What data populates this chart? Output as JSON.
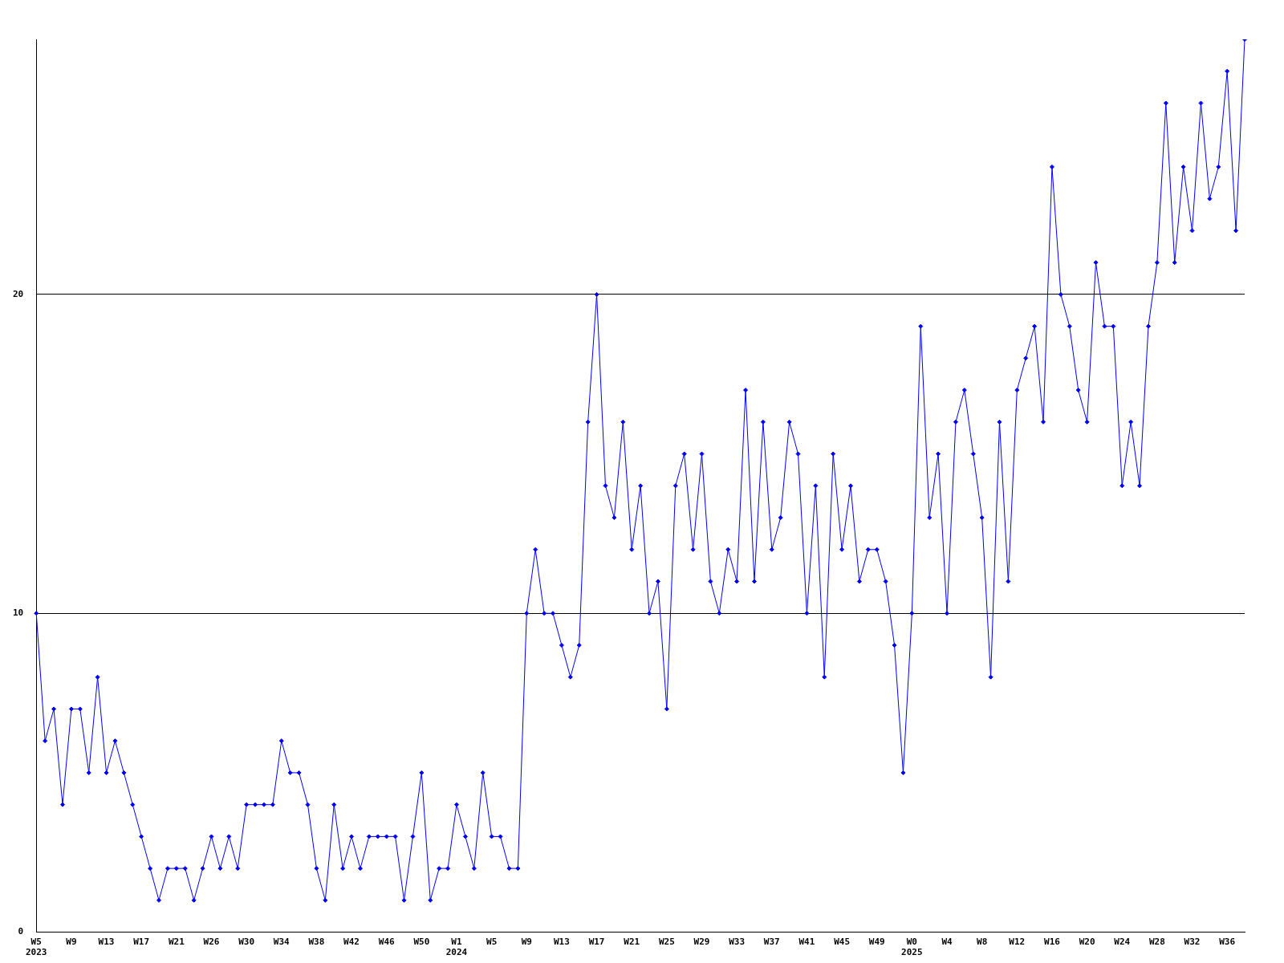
{
  "chart_data": {
    "type": "line",
    "categories": [
      "W5\n2023",
      null,
      null,
      null,
      "W9",
      null,
      null,
      null,
      "W13",
      null,
      null,
      null,
      "W17",
      null,
      null,
      null,
      "W21",
      null,
      null,
      null,
      "W26",
      null,
      null,
      null,
      "W30",
      null,
      null,
      null,
      "W34",
      null,
      null,
      null,
      "W38",
      null,
      null,
      null,
      "W42",
      null,
      null,
      null,
      "W46",
      null,
      null,
      null,
      "W50",
      null,
      null,
      null,
      "W1\n2024",
      null,
      null,
      null,
      "W5",
      null,
      null,
      null,
      "W9",
      null,
      null,
      null,
      "W13",
      null,
      null,
      null,
      "W17",
      null,
      null,
      null,
      "W21",
      null,
      null,
      null,
      "W25",
      null,
      null,
      null,
      "W29",
      null,
      null,
      null,
      "W33",
      null,
      null,
      null,
      "W37",
      null,
      null,
      null,
      "W41",
      null,
      null,
      null,
      "W45",
      null,
      null,
      null,
      "W49",
      null,
      null,
      null,
      "W0\n2025",
      null,
      null,
      null,
      "W4",
      null,
      null,
      null,
      "W8",
      null,
      null,
      null,
      "W12",
      null,
      null,
      null,
      "W16",
      null,
      null,
      null,
      "W20",
      null,
      null,
      null,
      "W24",
      null,
      null,
      null,
      "W28",
      null,
      null,
      null,
      "W32",
      null,
      null,
      null,
      "W36",
      null,
      null
    ],
    "series": [
      {
        "color": "#0000ff",
        "values": [
          10,
          6,
          7,
          4,
          7,
          7,
          5,
          8,
          5,
          6,
          5,
          4,
          3,
          2,
          1,
          2,
          2,
          2,
          1,
          2,
          3,
          2,
          3,
          2,
          4,
          4,
          4,
          4,
          6,
          5,
          5,
          4,
          2,
          1,
          4,
          2,
          3,
          2,
          3,
          3,
          3,
          3,
          1,
          3,
          5,
          1,
          2,
          2,
          4,
          3,
          2,
          5,
          3,
          3,
          2,
          2,
          10,
          12,
          10,
          10,
          9,
          8,
          9,
          16,
          20,
          14,
          13,
          16,
          12,
          14,
          10,
          11,
          7,
          14,
          15,
          12,
          15,
          11,
          10,
          12,
          11,
          17,
          11,
          16,
          12,
          13,
          16,
          15,
          10,
          14,
          8,
          15,
          12,
          14,
          11,
          12,
          12,
          11,
          9,
          5,
          10,
          19,
          13,
          15,
          10,
          16,
          17,
          15,
          13,
          8,
          16,
          11,
          17,
          18,
          19,
          16,
          24,
          20,
          19,
          17,
          16,
          21,
          19,
          19,
          14,
          16,
          14,
          19,
          21,
          26,
          21,
          24,
          22,
          26,
          23,
          24,
          27,
          22,
          28
        ]
      }
    ],
    "ylim": [
      0,
      28
    ],
    "yticks": [
      0,
      10,
      20
    ],
    "grid": "y",
    "marker": "diamond",
    "line_style": "solid"
  }
}
